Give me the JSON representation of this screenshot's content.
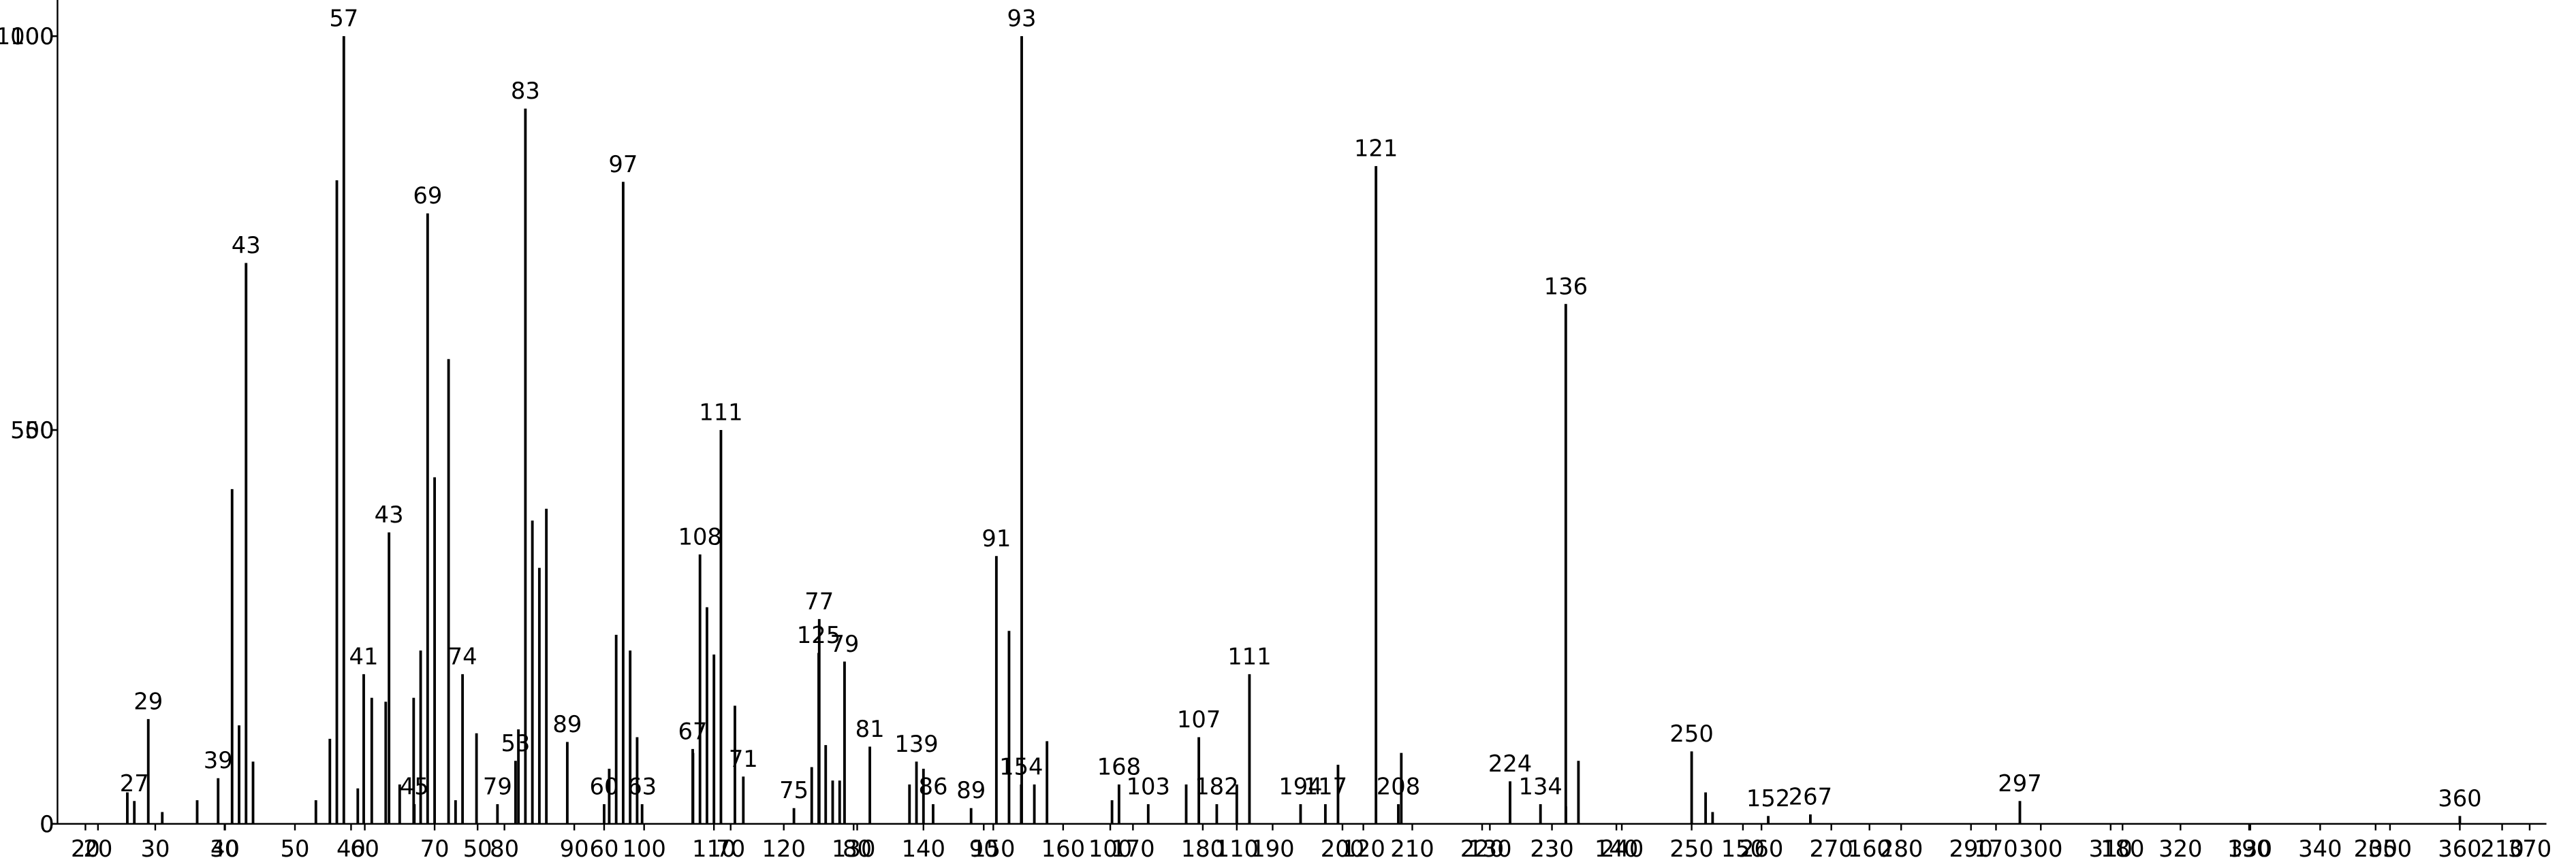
{
  "chart_data": [
    {
      "type": "bar",
      "color": "#000000",
      "xlim": [
        16,
        372.4
      ],
      "ylim": [
        0,
        1000
      ],
      "xticks": [
        20,
        30,
        40,
        50,
        60,
        70,
        80,
        90,
        100,
        110,
        120,
        130,
        140,
        150,
        160,
        170,
        180,
        190,
        200,
        210,
        220,
        230,
        240,
        250,
        260,
        270,
        280,
        290,
        300,
        310,
        320,
        330,
        340,
        350,
        360,
        370
      ],
      "yticks": [
        0,
        500,
        1000
      ],
      "series": [
        {
          "labels": true,
          "x": [
            27,
            29,
            39,
            43,
            57,
            69,
            74,
            79,
            83,
            89,
            97,
            108,
            111,
            125,
            139,
            154,
            168,
            182,
            194,
            208,
            224,
            250,
            267,
            297,
            360
          ],
          "values": [
            29,
            133,
            58,
            712,
            1000,
            775,
            190,
            25,
            908,
            104,
            815,
            342,
            500,
            217,
            79,
            50,
            50,
            25,
            25,
            25,
            54,
            92,
            12,
            29,
            10
          ]
        },
        {
          "x": [
            26,
            31,
            36,
            41,
            42,
            44,
            53,
            55,
            56,
            59,
            61,
            63,
            65,
            67,
            68,
            70,
            72,
            73,
            76,
            82,
            84,
            85,
            86,
            95,
            96,
            98,
            99,
            107,
            109,
            110,
            113,
            124,
            126,
            127,
            128,
            138,
            140,
            167,
            232,
            252,
            253
          ],
          "values": [
            40,
            15,
            30,
            425,
            125,
            79,
            30,
            108,
            817,
            45,
            160,
            155,
            50,
            160,
            220,
            440,
            590,
            30,
            115,
            120,
            385,
            325,
            400,
            70,
            240,
            220,
            110,
            90,
            275,
            215,
            150,
            72,
            100,
            55,
            55,
            50,
            70,
            30,
            22,
            40,
            15
          ]
        }
      ]
    },
    {
      "type": "bar",
      "color": "#000000",
      "xlim": [
        16.8,
        213.5
      ],
      "ylim": [
        0,
        100
      ],
      "xticks": [
        20,
        30,
        40,
        50,
        60,
        70,
        80,
        90,
        100,
        110,
        120,
        130,
        140,
        150,
        160,
        170,
        180,
        190,
        200,
        210
      ],
      "yticks": [
        0,
        50,
        100
      ],
      "series": [
        {
          "labels": true,
          "x": [
            41,
            43,
            45,
            53,
            60,
            63,
            67,
            71,
            75,
            77,
            79,
            81,
            86,
            89,
            91,
            93,
            103,
            107,
            111,
            117,
            121,
            134,
            136,
            152
          ],
          "values": [
            19,
            37,
            2.5,
            8,
            2.5,
            2.5,
            9.5,
            6,
            2,
            26,
            20.6,
            9.8,
            2.5,
            2,
            34,
            100,
            2.5,
            11,
            19,
            2.5,
            83.5,
            2.5,
            66,
            1
          ]
        },
        {
          "x": [
            92,
            94,
            95,
            106,
            110,
            118,
            123,
            137
          ],
          "values": [
            24.5,
            5,
            10.5,
            5,
            5,
            7.5,
            9,
            8
          ]
        }
      ]
    }
  ]
}
